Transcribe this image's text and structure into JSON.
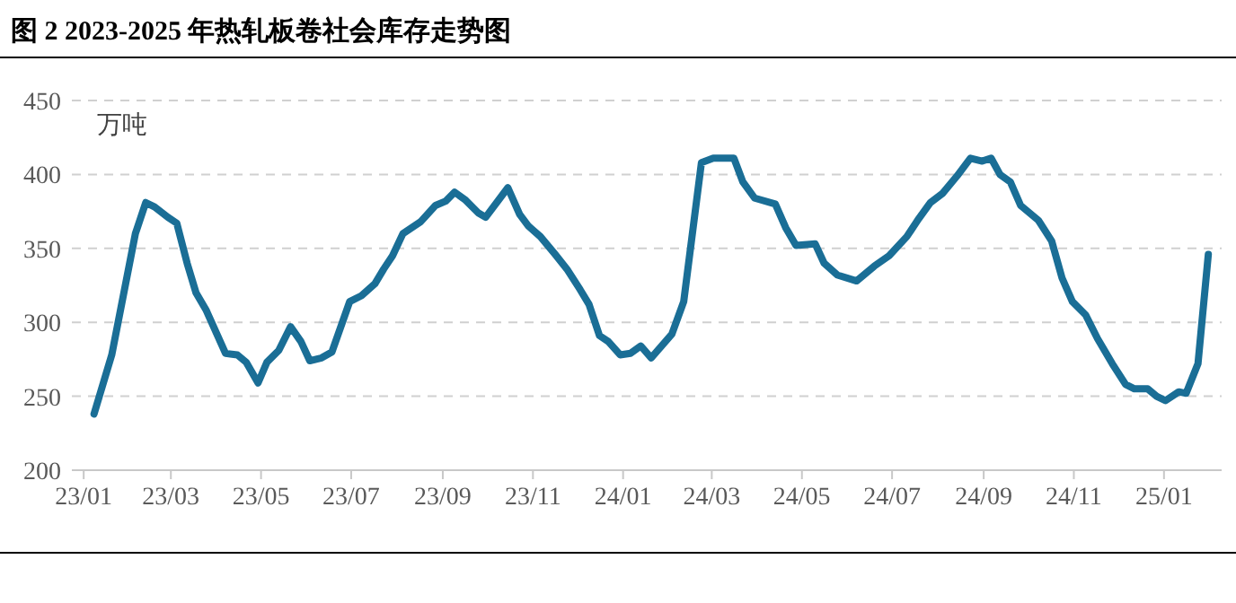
{
  "chart_data": {
    "type": "line",
    "title": "图 2 2023-2025 年热轧板卷社会库存走势图",
    "ylabel": "万吨",
    "x": [
      "2023-01-08",
      "2023-01-20",
      "2023-02-05",
      "2023-02-12",
      "2023-02-18",
      "2023-02-27",
      "2023-03-05",
      "2023-03-12",
      "2023-03-18",
      "2023-03-25",
      "2023-04-07",
      "2023-04-15",
      "2023-04-21",
      "2023-04-29",
      "2023-05-05",
      "2023-05-13",
      "2023-05-21",
      "2023-05-28",
      "2023-06-03",
      "2023-06-11",
      "2023-06-18",
      "2023-06-30",
      "2023-07-08",
      "2023-07-17",
      "2023-07-23",
      "2023-07-29",
      "2023-08-05",
      "2023-08-17",
      "2023-08-27",
      "2023-09-03",
      "2023-09-09",
      "2023-09-16",
      "2023-09-25",
      "2023-09-30",
      "2023-10-15",
      "2023-10-23",
      "2023-10-29",
      "2023-11-06",
      "2023-11-16",
      "2023-11-24",
      "2023-12-03",
      "2023-12-09",
      "2023-12-16",
      "2023-12-22",
      "2023-12-30",
      "2024-01-06",
      "2024-01-13",
      "2024-01-20",
      "2024-01-27",
      "2024-02-03",
      "2024-02-11",
      "2024-02-23",
      "2024-03-02",
      "2024-03-16",
      "2024-03-22",
      "2024-03-30",
      "2024-04-13",
      "2024-04-20",
      "2024-04-27",
      "2024-05-10",
      "2024-05-16",
      "2024-05-25",
      "2024-06-07",
      "2024-06-19",
      "2024-06-29",
      "2024-07-11",
      "2024-07-19",
      "2024-07-27",
      "2024-08-04",
      "2024-08-14",
      "2024-08-23",
      "2024-08-31",
      "2024-09-06",
      "2024-09-12",
      "2024-09-19",
      "2024-09-26",
      "2024-10-08",
      "2024-10-17",
      "2024-10-24",
      "2024-10-31",
      "2024-11-09",
      "2024-11-17",
      "2024-11-27",
      "2024-12-06",
      "2024-12-12",
      "2024-12-21",
      "2024-12-27",
      "2025-01-02",
      "2025-01-11",
      "2025-01-16",
      "2025-01-24",
      "2025-01-31"
    ],
    "values": [
      238,
      278,
      360,
      381,
      378,
      371,
      367,
      340,
      320,
      308,
      279,
      278,
      273,
      259,
      273,
      281,
      297,
      287,
      274,
      276,
      280,
      314,
      318,
      326,
      336,
      345,
      360,
      368,
      379,
      382,
      388,
      383,
      374,
      371,
      391,
      373,
      365,
      358,
      346,
      336,
      322,
      312,
      291,
      287,
      278,
      279,
      284,
      276,
      284,
      292,
      314,
      408,
      411,
      411,
      395,
      384,
      380,
      364,
      352,
      353,
      340,
      332,
      328,
      338,
      345,
      358,
      370,
      381,
      387,
      399,
      411,
      409,
      411,
      400,
      395,
      379,
      369,
      355,
      330,
      314,
      305,
      289,
      272,
      258,
      255,
      255,
      250,
      247,
      253,
      252,
      272,
      346
    ],
    "color": "#1a6e96",
    "xlim": [
      "2022-12-24",
      "2025-02-09"
    ],
    "xticks": [
      {
        "value": "2023-01-01",
        "label": "23/01"
      },
      {
        "value": "2023-03-01",
        "label": "23/03"
      },
      {
        "value": "2023-05-01",
        "label": "23/05"
      },
      {
        "value": "2023-07-01",
        "label": "23/07"
      },
      {
        "value": "2023-09-01",
        "label": "23/09"
      },
      {
        "value": "2023-11-01",
        "label": "23/11"
      },
      {
        "value": "2024-01-01",
        "label": "24/01"
      },
      {
        "value": "2024-03-01",
        "label": "24/03"
      },
      {
        "value": "2024-05-01",
        "label": "24/05"
      },
      {
        "value": "2024-07-01",
        "label": "24/07"
      },
      {
        "value": "2024-09-01",
        "label": "24/09"
      },
      {
        "value": "2024-11-01",
        "label": "24/11"
      },
      {
        "value": "2025-01-01",
        "label": "25/01"
      }
    ],
    "ylim": [
      200,
      450
    ],
    "yticks": [
      200,
      250,
      300,
      350,
      400,
      450
    ],
    "grid": "y"
  }
}
